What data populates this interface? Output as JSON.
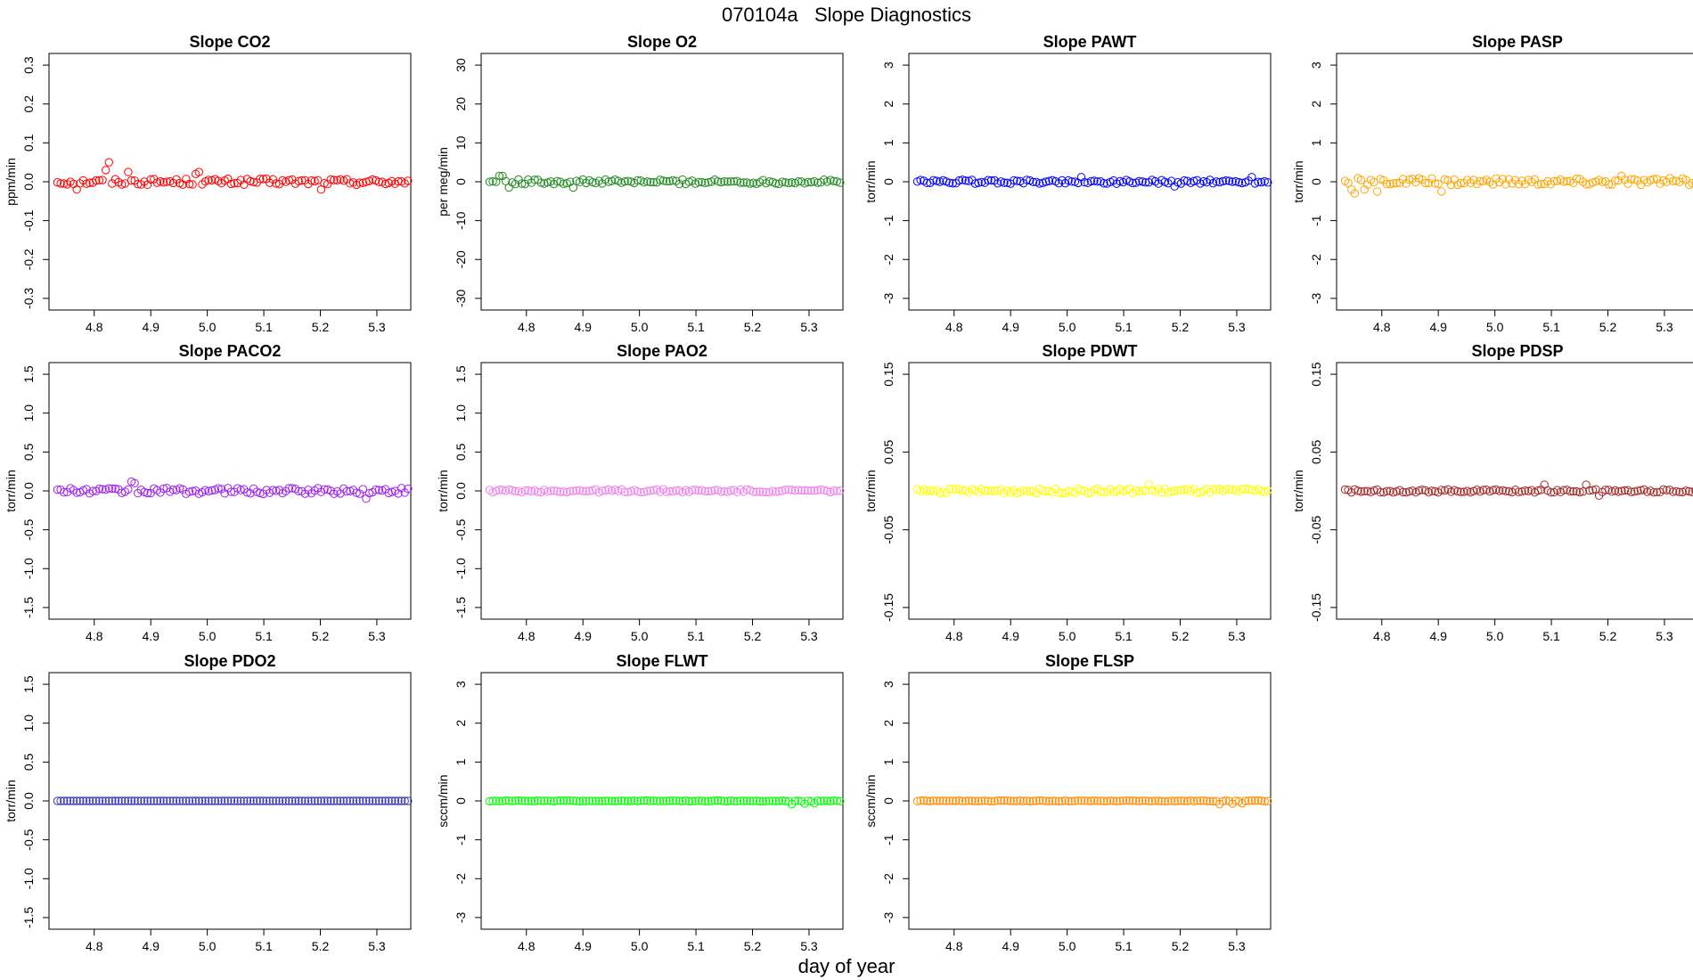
{
  "title": "070104a   Slope Diagnostics",
  "x_axis_label": "day of year",
  "chart_data": [
    {
      "type": "scatter",
      "title": "Slope CO2",
      "ylabel": "ppm/min",
      "color": "#FF0000",
      "ylim": [
        -0.33,
        0.33
      ],
      "yticks": [
        -0.3,
        -0.2,
        -0.1,
        0.0,
        0.1,
        0.2,
        0.3
      ],
      "ytick_labels": [
        "-0.3",
        "-0.2",
        "-0.1",
        "0.0",
        "0.1",
        "0.2",
        "0.3"
      ],
      "xlim": [
        4.72,
        5.36
      ],
      "xticks": [
        4.8,
        4.9,
        5.0,
        5.1,
        5.2,
        5.3
      ],
      "xtick_labels": [
        "4.8",
        "4.9",
        "5.0",
        "5.1",
        "5.2",
        "5.3"
      ],
      "base": 0,
      "amp": 0.008,
      "spikes": [
        [
          6,
          -0.02
        ],
        [
          15,
          0.03
        ],
        [
          16,
          0.05
        ],
        [
          22,
          0.025
        ],
        [
          43,
          0.02
        ],
        [
          44,
          0.025
        ],
        [
          82,
          -0.02
        ]
      ]
    },
    {
      "type": "scatter",
      "title": "Slope O2",
      "ylabel": "per meg/min",
      "color": "#228B22",
      "ylim": [
        -33,
        33
      ],
      "yticks": [
        -30,
        -20,
        -10,
        0,
        10,
        20,
        30
      ],
      "ytick_labels": [
        "-30",
        "-20",
        "-10",
        "0",
        "10",
        "20",
        "30"
      ],
      "xlim": [
        4.72,
        5.36
      ],
      "xticks": [
        4.8,
        4.9,
        5.0,
        5.1,
        5.2,
        5.3
      ],
      "xtick_labels": [
        "4.8",
        "4.9",
        "5.0",
        "5.1",
        "5.2",
        "5.3"
      ],
      "base": 0,
      "amp": 0.6,
      "spikes": [
        [
          3,
          1.5
        ],
        [
          4,
          1.5
        ],
        [
          6,
          -1.5
        ],
        [
          26,
          -1.5
        ]
      ]
    },
    {
      "type": "scatter",
      "title": "Slope PAWT",
      "ylabel": "torr/min",
      "color": "#0000FF",
      "ylim": [
        -3.3,
        3.3
      ],
      "yticks": [
        -3,
        -2,
        -1,
        0,
        1,
        2,
        3
      ],
      "ytick_labels": [
        "-3",
        "-2",
        "-1",
        "0",
        "1",
        "2",
        "3"
      ],
      "xlim": [
        4.72,
        5.36
      ],
      "xticks": [
        4.8,
        4.9,
        5.0,
        5.1,
        5.2,
        5.3
      ],
      "xtick_labels": [
        "4.8",
        "4.9",
        "5.0",
        "5.1",
        "5.2",
        "5.3"
      ],
      "base": 0,
      "amp": 0.05,
      "spikes": [
        [
          51,
          0.12
        ],
        [
          80,
          -0.12
        ],
        [
          104,
          0.12
        ]
      ]
    },
    {
      "type": "scatter",
      "title": "Slope PASP",
      "ylabel": "torr/min",
      "color": "#FFA500",
      "ylim": [
        -3.3,
        3.3
      ],
      "yticks": [
        -3,
        -2,
        -1,
        0,
        1,
        2,
        3
      ],
      "ytick_labels": [
        "-3",
        "-2",
        "-1",
        "0",
        "1",
        "2",
        "3"
      ],
      "xlim": [
        4.72,
        5.36
      ],
      "xticks": [
        4.8,
        4.9,
        5.0,
        5.1,
        5.2,
        5.3
      ],
      "xtick_labels": [
        "4.8",
        "4.9",
        "5.0",
        "5.1",
        "5.2",
        "5.3"
      ],
      "base": 0,
      "amp": 0.09,
      "spikes": [
        [
          2,
          -0.2
        ],
        [
          3,
          -0.3
        ],
        [
          6,
          -0.2
        ],
        [
          10,
          -0.25
        ],
        [
          30,
          -0.25
        ],
        [
          86,
          0.15
        ]
      ]
    },
    {
      "type": "scatter",
      "title": "Slope PACO2",
      "ylabel": "torr/min",
      "color": "#A020F0",
      "ylim": [
        -1.65,
        1.65
      ],
      "yticks": [
        -1.5,
        -1.0,
        -0.5,
        0.0,
        0.5,
        1.0,
        1.5
      ],
      "ytick_labels": [
        "-1.5",
        "-1.0",
        "-0.5",
        "0.0",
        "0.5",
        "1.0",
        "1.5"
      ],
      "xlim": [
        4.72,
        5.36
      ],
      "xticks": [
        4.8,
        4.9,
        5.0,
        5.1,
        5.2,
        5.3
      ],
      "xtick_labels": [
        "4.8",
        "4.9",
        "5.0",
        "5.1",
        "5.2",
        "5.3"
      ],
      "base": 0,
      "amp": 0.04,
      "spikes": [
        [
          23,
          0.12
        ],
        [
          24,
          0.1
        ],
        [
          96,
          -0.1
        ]
      ]
    },
    {
      "type": "scatter",
      "title": "Slope PAO2",
      "ylabel": "torr/min",
      "color": "#EE82EE",
      "ylim": [
        -1.65,
        1.65
      ],
      "yticks": [
        -1.5,
        -1.0,
        -0.5,
        0.0,
        0.5,
        1.0,
        1.5
      ],
      "ytick_labels": [
        "-1.5",
        "-1.0",
        "-0.5",
        "0.0",
        "0.5",
        "1.0",
        "1.5"
      ],
      "xlim": [
        4.72,
        5.36
      ],
      "xticks": [
        4.8,
        4.9,
        5.0,
        5.1,
        5.2,
        5.3
      ],
      "xtick_labels": [
        "4.8",
        "4.9",
        "5.0",
        "5.1",
        "5.2",
        "5.3"
      ],
      "base": 0,
      "amp": 0.02,
      "spikes": []
    },
    {
      "type": "scatter",
      "title": "Slope PDWT",
      "ylabel": "torr/min",
      "color": "#FFFF00",
      "ylim": [
        -0.165,
        0.165
      ],
      "yticks": [
        -0.15,
        -0.05,
        0.05,
        0.15
      ],
      "ytick_labels": [
        "-0.15",
        "-0.05",
        "0.05",
        "0.15"
      ],
      "xlim": [
        4.72,
        5.36
      ],
      "xticks": [
        4.8,
        4.9,
        5.0,
        5.1,
        5.2,
        5.3
      ],
      "xtick_labels": [
        "4.8",
        "4.9",
        "5.0",
        "5.1",
        "5.2",
        "5.3"
      ],
      "base": 0,
      "amp": 0.003,
      "spikes": [
        [
          72,
          0.008
        ]
      ]
    },
    {
      "type": "scatter",
      "title": "Slope PDSP",
      "ylabel": "torr/min",
      "color": "#A52A2A",
      "ylim": [
        -0.165,
        0.165
      ],
      "yticks": [
        -0.15,
        -0.05,
        0.05,
        0.15
      ],
      "ytick_labels": [
        "-0.15",
        "-0.05",
        "0.05",
        "0.15"
      ],
      "xlim": [
        4.72,
        5.36
      ],
      "xticks": [
        4.8,
        4.9,
        5.0,
        5.1,
        5.2,
        5.3
      ],
      "xtick_labels": [
        "4.8",
        "4.9",
        "5.0",
        "5.1",
        "5.2",
        "5.3"
      ],
      "base": 0,
      "amp": 0.002,
      "spikes": [
        [
          62,
          0.008
        ],
        [
          75,
          0.008
        ],
        [
          79,
          -0.006
        ]
      ]
    },
    {
      "type": "scatter",
      "title": "Slope PDO2",
      "ylabel": "torr/min",
      "color": "#3A3AB0",
      "ylim": [
        -1.65,
        1.65
      ],
      "yticks": [
        -1.5,
        -1.0,
        -0.5,
        0.0,
        0.5,
        1.0,
        1.5
      ],
      "ytick_labels": [
        "-1.5",
        "-1.0",
        "-0.5",
        "0.0",
        "0.5",
        "1.0",
        "1.5"
      ],
      "xlim": [
        4.72,
        5.36
      ],
      "xticks": [
        4.8,
        4.9,
        5.0,
        5.1,
        5.2,
        5.3
      ],
      "xtick_labels": [
        "4.8",
        "4.9",
        "5.0",
        "5.1",
        "5.2",
        "5.3"
      ],
      "base": 0,
      "amp": 0,
      "spikes": []
    },
    {
      "type": "scatter",
      "title": "Slope FLWT",
      "ylabel": "sccm/min",
      "color": "#00FF00",
      "ylim": [
        -3.3,
        3.3
      ],
      "yticks": [
        -3,
        -2,
        -1,
        0,
        1,
        2,
        3
      ],
      "ytick_labels": [
        "-3",
        "-2",
        "-1",
        "0",
        "1",
        "2",
        "3"
      ],
      "xlim": [
        4.72,
        5.36
      ],
      "xticks": [
        4.8,
        4.9,
        5.0,
        5.1,
        5.2,
        5.3
      ],
      "xtick_labels": [
        "4.8",
        "4.9",
        "5.0",
        "5.1",
        "5.2",
        "5.3"
      ],
      "base": 0,
      "amp": 0.01,
      "spikes": [
        [
          94,
          -0.08
        ],
        [
          98,
          -0.07
        ],
        [
          101,
          -0.06
        ]
      ]
    },
    {
      "type": "scatter",
      "title": "Slope FLSP",
      "ylabel": "sccm/min",
      "color": "#FF8C00",
      "ylim": [
        -3.3,
        3.3
      ],
      "yticks": [
        -3,
        -2,
        -1,
        0,
        1,
        2,
        3
      ],
      "ytick_labels": [
        "-3",
        "-2",
        "-1",
        "0",
        "1",
        "2",
        "3"
      ],
      "xlim": [
        4.72,
        5.36
      ],
      "xticks": [
        4.8,
        4.9,
        5.0,
        5.1,
        5.2,
        5.3
      ],
      "xtick_labels": [
        "4.8",
        "4.9",
        "5.0",
        "5.1",
        "5.2",
        "5.3"
      ],
      "base": 0,
      "amp": 0.01,
      "spikes": [
        [
          94,
          -0.08
        ],
        [
          98,
          -0.07
        ],
        [
          101,
          -0.06
        ]
      ]
    }
  ]
}
